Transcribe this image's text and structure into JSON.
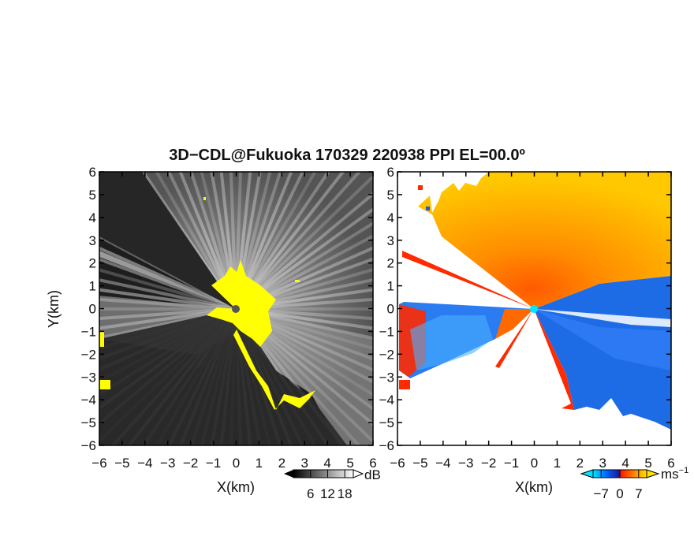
{
  "title": "3D−CDL@Fukuoka 170329 220938 PPI EL=00.0º",
  "chart_data": [
    {
      "type": "heatmap",
      "panel": "left",
      "quantity": "SNR",
      "xlabel": "X(km)",
      "ylabel": "Y(km)",
      "xlim": [
        -6,
        6
      ],
      "ylim": [
        -6,
        6
      ],
      "xticks": [
        "−6",
        "−5",
        "−4",
        "−3",
        "−2",
        "−1",
        "0",
        "1",
        "2",
        "3",
        "4",
        "5",
        "6"
      ],
      "yticks": [
        "6",
        "5",
        "4",
        "3",
        "2",
        "1",
        "0",
        "−1",
        "−2",
        "−3",
        "−4",
        "−5",
        "−6"
      ],
      "colorbar": {
        "ticks": [
          "6",
          "12",
          "18"
        ],
        "unit": "dB",
        "range": [
          0,
          21
        ],
        "colors": [
          "#000000",
          "#ffffff"
        ]
      },
      "highlight_color": "#ffff00",
      "center_marker_color": "#555555"
    },
    {
      "type": "heatmap",
      "panel": "right",
      "quantity": "radial velocity",
      "xlabel": "X(km)",
      "xlim": [
        -6,
        6
      ],
      "ylim": [
        -6,
        6
      ],
      "xticks": [
        "−6",
        "−5",
        "−4",
        "−3",
        "−2",
        "−1",
        "0",
        "1",
        "2",
        "3",
        "4",
        "5",
        "6"
      ],
      "yticks": [
        "6",
        "5",
        "4",
        "3",
        "2",
        "1",
        "0",
        "−1",
        "−2",
        "−3",
        "−4",
        "−5",
        "−6"
      ],
      "colorbar": {
        "ticks": [
          "−7",
          "0",
          "7"
        ],
        "unit": "ms",
        "unit_exp": "−1",
        "range": [
          -10,
          10
        ],
        "colors": [
          "#00e5ff",
          "#0066ff",
          "#1a1aa0",
          "#ff1a00",
          "#ff8a00",
          "#ffe000"
        ]
      },
      "center_marker_color": "#00e8ff"
    }
  ]
}
